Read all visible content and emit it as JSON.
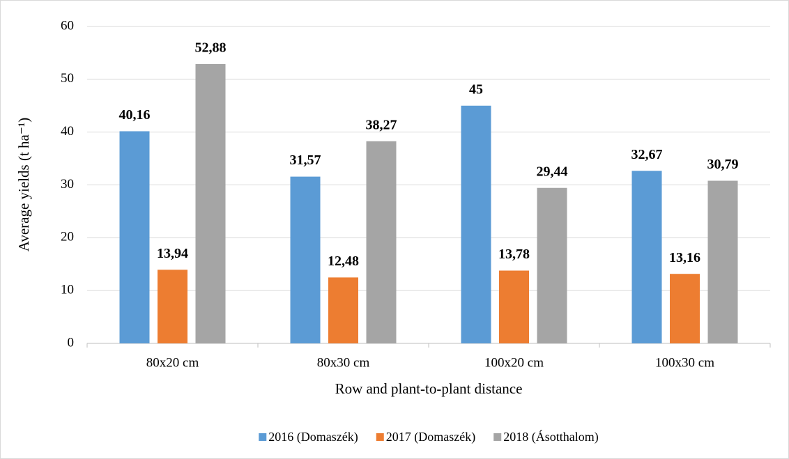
{
  "chart_data": {
    "type": "bar",
    "xlabel": "Row and plant-to-plant distance",
    "ylabel": "Average yields (t ha⁻¹)",
    "categories": [
      "80x20 cm",
      "80x30 cm",
      "100x20 cm",
      "100x30 cm"
    ],
    "series": [
      {
        "name": "2016 (Domaszék)",
        "color": "#5b9bd5",
        "values": [
          40.16,
          31.57,
          45,
          32.67
        ],
        "value_labels": [
          "40,16",
          "31,57",
          "45",
          "32,67"
        ]
      },
      {
        "name": "2017 (Domaszék)",
        "color": "#ed7d31",
        "values": [
          13.94,
          12.48,
          13.78,
          13.16
        ],
        "value_labels": [
          "13,94",
          "12,48",
          "13,78",
          "13,16"
        ]
      },
      {
        "name": "2018 (Ásotthalom)",
        "color": "#a5a5a5",
        "values": [
          52.88,
          38.27,
          29.44,
          30.79
        ],
        "value_labels": [
          "52,88",
          "38,27",
          "29,44",
          "30,79"
        ]
      }
    ],
    "ylim": [
      0,
      60
    ],
    "yticks": [
      0,
      10,
      20,
      30,
      40,
      50,
      60
    ],
    "grid": true,
    "legend": "bottom"
  }
}
